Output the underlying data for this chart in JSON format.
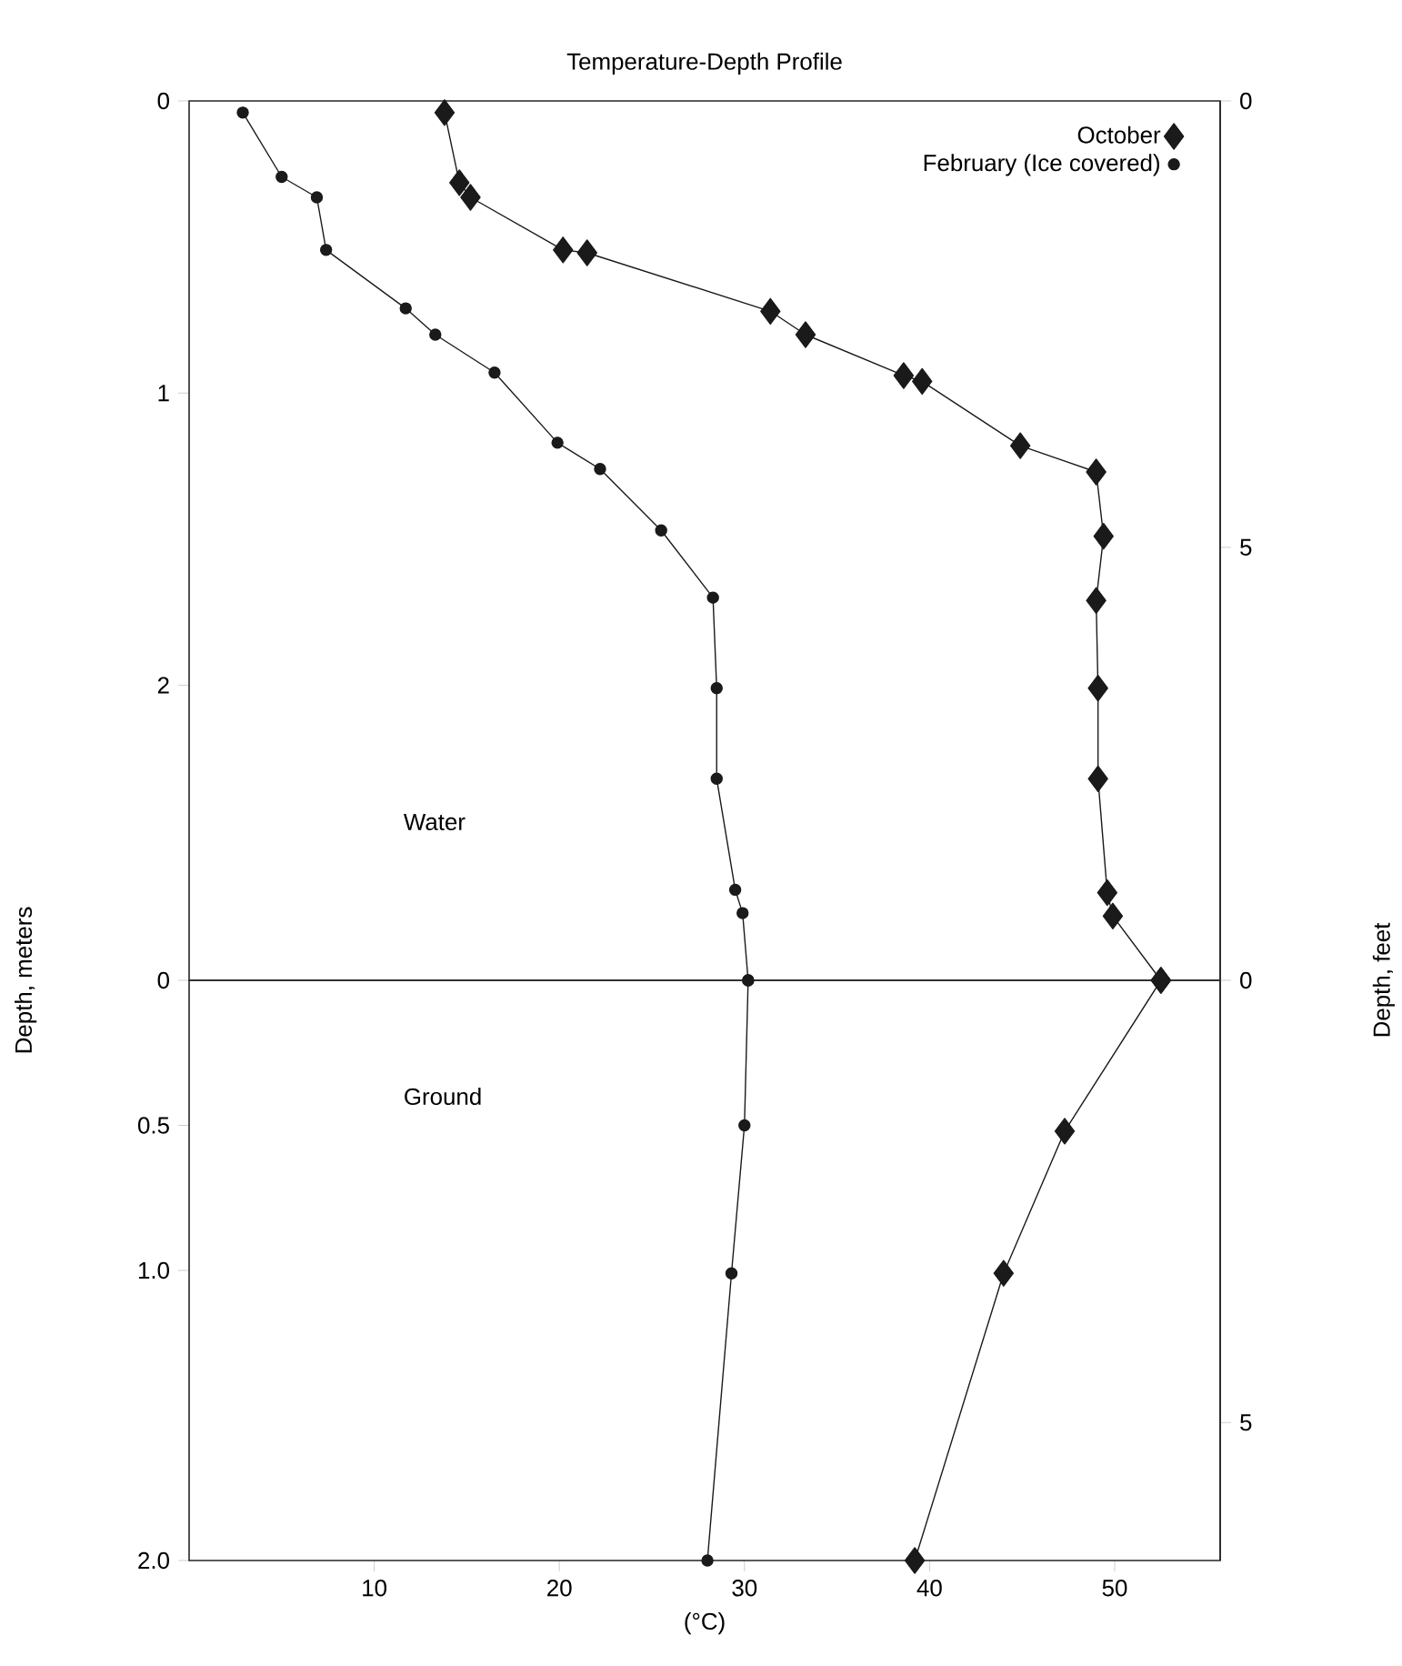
{
  "chart_data": [
    {
      "type": "line",
      "title": "Temperature-Depth Profile",
      "ylabel": "Depth, meters",
      "y2label": "Depth, feet",
      "xlim": [
        0,
        55.7
      ],
      "xticks": [
        10,
        20,
        30,
        40,
        50
      ],
      "ylim": [
        3.01,
        0
      ],
      "yticks": [
        0,
        1,
        2
      ],
      "y2lim": [
        9.85,
        0
      ],
      "y2ticks": [
        0,
        5
      ],
      "tick_labels": "y",
      "legend": "top right",
      "annotations": [
        "Water"
      ],
      "series": [
        {
          "name": "October",
          "color": "#1a1a1a",
          "marker": "diamond",
          "x": [
            13.8,
            14.6,
            15.2,
            20.2,
            21.5,
            31.4,
            33.3,
            38.6,
            39.6,
            44.9,
            49.0,
            49.4,
            49.0,
            49.1,
            49.1,
            49.6,
            49.9,
            52.5
          ],
          "values": [
            0.04,
            0.28,
            0.33,
            0.51,
            0.52,
            0.72,
            0.8,
            0.94,
            0.96,
            1.18,
            1.27,
            1.49,
            1.71,
            2.01,
            2.32,
            2.71,
            2.79,
            3.01
          ]
        },
        {
          "name": "February (Ice covered)",
          "color": "#1a1a1a",
          "marker": "circle",
          "x": [
            2.9,
            5.0,
            6.9,
            7.4,
            11.7,
            13.3,
            16.5,
            19.9,
            22.2,
            25.5,
            28.3,
            28.5,
            28.5,
            29.5,
            29.9,
            30.2
          ],
          "values": [
            0.04,
            0.26,
            0.33,
            0.51,
            0.71,
            0.8,
            0.93,
            1.17,
            1.26,
            1.47,
            1.7,
            2.01,
            2.32,
            2.7,
            2.78,
            3.01
          ]
        }
      ]
    },
    {
      "type": "line",
      "xlabel": "(°C)",
      "xlim": [
        0,
        55.7
      ],
      "xticks": [
        10,
        20,
        30,
        40,
        50
      ],
      "ylim": [
        2.0,
        0
      ],
      "yticks": [
        0,
        0.5,
        {
          "value": 1,
          "label": "1.0"
        },
        {
          "value": 2,
          "label": "2.0"
        }
      ],
      "y2lim": [
        6.56,
        0
      ],
      "y2ticks": [
        0,
        5
      ],
      "annotations": [
        "Ground"
      ],
      "series": [
        {
          "color": "#1a1a1a",
          "marker": "diamond",
          "x": [
            52.5,
            47.3,
            44.0,
            39.2
          ],
          "values": [
            0,
            0.52,
            1.01,
            2.0
          ]
        },
        {
          "color": "#1a1a1a",
          "marker": "circle",
          "x": [
            30.2,
            30.0,
            29.3,
            28.0
          ],
          "values": [
            0,
            0.5,
            1.01,
            2.0
          ]
        }
      ]
    }
  ]
}
